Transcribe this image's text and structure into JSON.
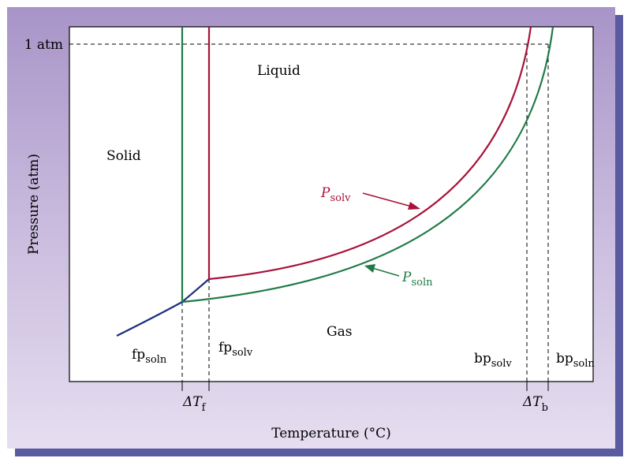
{
  "axes": {
    "xlabel": "Temperature (°C)",
    "ylabel": "Pressure (atm)",
    "pressure_tick": "1 atm"
  },
  "regions": {
    "solid": "Solid",
    "liquid": "Liquid",
    "gas": "Gas"
  },
  "labels": {
    "fp_soln": {
      "main": "fp",
      "sub": "soln"
    },
    "fp_solv": {
      "main": "fp",
      "sub": "solv"
    },
    "bp_solv": {
      "main": "bp",
      "sub": "solv"
    },
    "bp_soln": {
      "main": "bp",
      "sub": "soln"
    },
    "delta_tf": {
      "main": "ΔT",
      "sub": "f"
    },
    "delta_tb": {
      "main": "ΔT",
      "sub": "b"
    },
    "p_solv": {
      "main": "P",
      "sub": "solv"
    },
    "p_soln": {
      "main": "P",
      "sub": "soln"
    }
  },
  "colors": {
    "solvent": "#a8123a",
    "solution": "#1e7a46",
    "sublimation": "#1c2f80",
    "border": "#000000"
  }
}
